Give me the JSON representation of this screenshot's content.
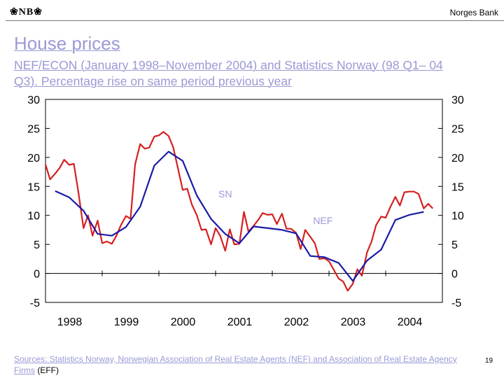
{
  "header": {
    "logo_text": "❀NB❀",
    "brand": "Norges Bank"
  },
  "slide": {
    "title": "House prices",
    "subtitle_main": "NEF/ECON (January 1998–November 2004) and Statistics Norway (98 Q1– 04 Q3).",
    "subtitle_tail": "Percentage rise on same period previous year",
    "page_number": "19"
  },
  "footnote": {
    "text": "Sources: Statistics Norway, Norwegian Association of Real Estate Agents (NEF) and Association of Real Estate Agency Firms",
    "abbr": "(EFF)"
  },
  "colors": {
    "nef": "#d62020",
    "sn": "#1a1aa6",
    "axis": "#000000",
    "label": "#9a9ad6"
  },
  "chart_data": {
    "type": "line",
    "title": "House prices",
    "xlabel": "",
    "ylabel": "",
    "ylim": [
      -5,
      30
    ],
    "xlim": [
      1998.0,
      2005.0
    ],
    "yticks": [
      30,
      25,
      20,
      15,
      10,
      5,
      0,
      -5
    ],
    "ytick_labels": [
      "30",
      "25",
      "20",
      "15",
      "10",
      "5",
      "0",
      "-5"
    ],
    "xtick_positions": [
      1998,
      1999,
      2000,
      2001,
      2002,
      2003,
      2004
    ],
    "xtick_labels": [
      "1998",
      "1999",
      "2000",
      "2001",
      "2002",
      "2003",
      "2004"
    ],
    "series": [
      {
        "name": "NEF",
        "label": "NEF",
        "color": "#d62020",
        "points": [
          [
            1998.0,
            18.8
          ],
          [
            1998.08,
            16.2
          ],
          [
            1998.17,
            17.2
          ],
          [
            1998.25,
            18.2
          ],
          [
            1998.33,
            19.6
          ],
          [
            1998.42,
            18.7
          ],
          [
            1998.5,
            18.9
          ],
          [
            1998.58,
            14.0
          ],
          [
            1998.67,
            7.8
          ],
          [
            1998.75,
            10.0
          ],
          [
            1998.83,
            6.5
          ],
          [
            1998.92,
            9.1
          ],
          [
            1999.0,
            5.2
          ],
          [
            1999.08,
            5.5
          ],
          [
            1999.17,
            5.1
          ],
          [
            1999.25,
            6.5
          ],
          [
            1999.33,
            8.3
          ],
          [
            1999.42,
            9.9
          ],
          [
            1999.5,
            9.4
          ],
          [
            1999.58,
            18.8
          ],
          [
            1999.67,
            22.3
          ],
          [
            1999.75,
            21.5
          ],
          [
            1999.83,
            21.7
          ],
          [
            1999.92,
            23.6
          ],
          [
            2000.0,
            23.8
          ],
          [
            2000.08,
            24.4
          ],
          [
            2000.17,
            23.7
          ],
          [
            2000.25,
            21.8
          ],
          [
            2000.33,
            18.4
          ],
          [
            2000.42,
            14.4
          ],
          [
            2000.5,
            14.6
          ],
          [
            2000.58,
            11.9
          ],
          [
            2000.67,
            10.0
          ],
          [
            2000.75,
            7.5
          ],
          [
            2000.83,
            7.6
          ],
          [
            2000.92,
            5.0
          ],
          [
            2001.0,
            7.8
          ],
          [
            2001.08,
            6.5
          ],
          [
            2001.17,
            3.9
          ],
          [
            2001.25,
            7.6
          ],
          [
            2001.33,
            5.0
          ],
          [
            2001.42,
            5.1
          ],
          [
            2001.5,
            10.6
          ],
          [
            2001.58,
            7.2
          ],
          [
            2001.67,
            8.2
          ],
          [
            2001.75,
            9.2
          ],
          [
            2001.83,
            10.4
          ],
          [
            2001.92,
            10.1
          ],
          [
            2002.0,
            10.2
          ],
          [
            2002.08,
            8.5
          ],
          [
            2002.17,
            10.3
          ],
          [
            2002.25,
            7.7
          ],
          [
            2002.33,
            7.7
          ],
          [
            2002.42,
            7.0
          ],
          [
            2002.5,
            4.2
          ],
          [
            2002.58,
            7.5
          ],
          [
            2002.67,
            6.3
          ],
          [
            2002.75,
            5.2
          ],
          [
            2002.83,
            2.5
          ],
          [
            2002.92,
            2.6
          ],
          [
            2003.0,
            2.1
          ],
          [
            2003.08,
            0.7
          ],
          [
            2003.17,
            -0.9
          ],
          [
            2003.25,
            -1.4
          ],
          [
            2003.33,
            -3.0
          ],
          [
            2003.42,
            -1.8
          ],
          [
            2003.5,
            0.7
          ],
          [
            2003.58,
            -0.4
          ],
          [
            2003.67,
            3.6
          ],
          [
            2003.75,
            5.5
          ],
          [
            2003.83,
            8.3
          ],
          [
            2003.92,
            9.8
          ],
          [
            2004.0,
            9.6
          ],
          [
            2004.08,
            11.4
          ],
          [
            2004.17,
            13.2
          ],
          [
            2004.25,
            11.7
          ],
          [
            2004.33,
            14.0
          ],
          [
            2004.42,
            14.1
          ],
          [
            2004.5,
            14.1
          ],
          [
            2004.58,
            13.7
          ],
          [
            2004.67,
            11.2
          ],
          [
            2004.75,
            12.0
          ],
          [
            2004.83,
            11.2
          ]
        ]
      },
      {
        "name": "SN",
        "label": "SN",
        "color": "#1a1aa6",
        "points": [
          [
            1998.17,
            14.2
          ],
          [
            1998.42,
            13.1
          ],
          [
            1998.67,
            10.8
          ],
          [
            1998.92,
            6.8
          ],
          [
            1999.17,
            6.5
          ],
          [
            1999.42,
            8.0
          ],
          [
            1999.67,
            11.5
          ],
          [
            1999.92,
            18.6
          ],
          [
            2000.17,
            21.0
          ],
          [
            2000.42,
            19.4
          ],
          [
            2000.67,
            13.4
          ],
          [
            2000.92,
            9.4
          ],
          [
            2001.17,
            6.8
          ],
          [
            2001.42,
            5.2
          ],
          [
            2001.67,
            8.1
          ],
          [
            2001.92,
            7.8
          ],
          [
            2002.17,
            7.5
          ],
          [
            2002.42,
            6.9
          ],
          [
            2002.67,
            3.0
          ],
          [
            2002.92,
            2.8
          ],
          [
            2003.17,
            1.8
          ],
          [
            2003.42,
            -1.3
          ],
          [
            2003.67,
            2.2
          ],
          [
            2003.92,
            4.1
          ],
          [
            2004.17,
            9.2
          ],
          [
            2004.42,
            10.1
          ],
          [
            2004.67,
            10.6
          ]
        ]
      }
    ],
    "annotations": [
      {
        "text": "SN",
        "x": 2001.05,
        "y": 13.1
      },
      {
        "text": "NEF",
        "x": 2002.72,
        "y": 8.5
      }
    ]
  }
}
